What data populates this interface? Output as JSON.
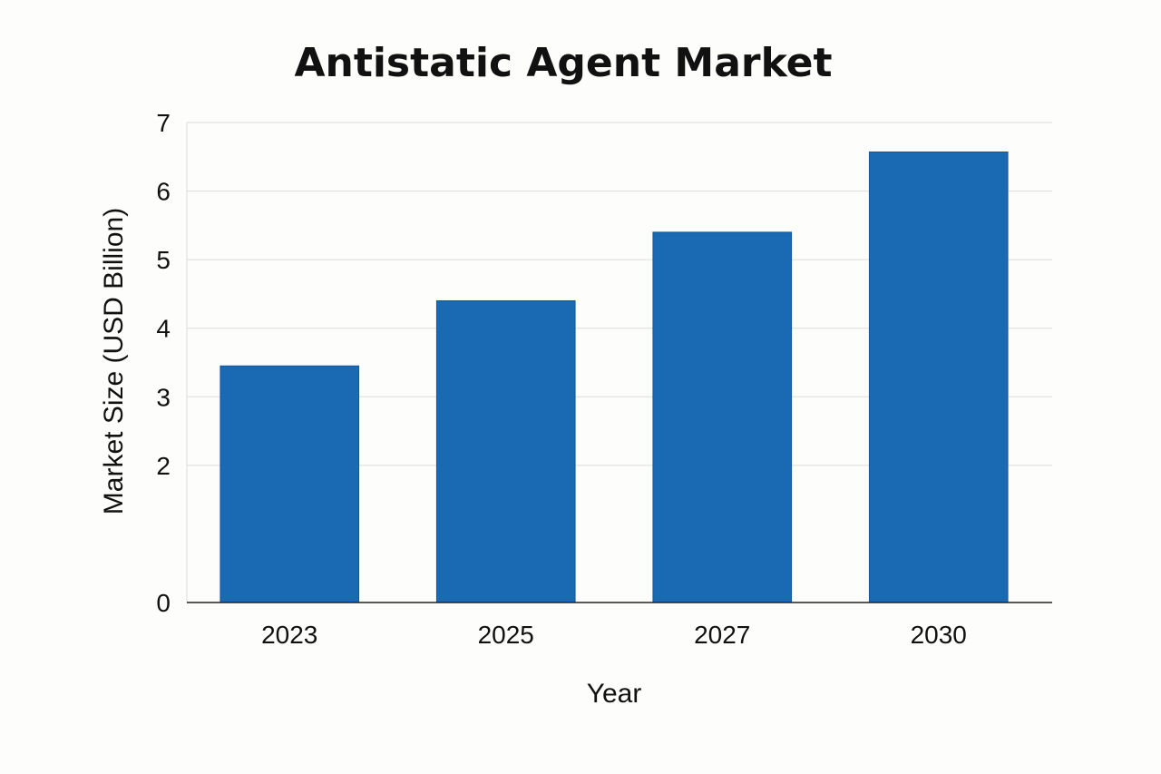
{
  "chart_data": {
    "type": "bar",
    "title": "Antistatic Agent Market",
    "xlabel": "Year",
    "ylabel": "Market Size (USD Billion)",
    "categories": [
      "2023",
      "2025",
      "2027",
      "2030"
    ],
    "values": [
      3.45,
      4.4,
      5.4,
      6.57
    ],
    "ylim": [
      0,
      7
    ],
    "yticks": [
      0,
      2,
      3,
      4,
      5,
      6,
      7
    ],
    "grid": true,
    "bar_color": "#1a69b3"
  }
}
